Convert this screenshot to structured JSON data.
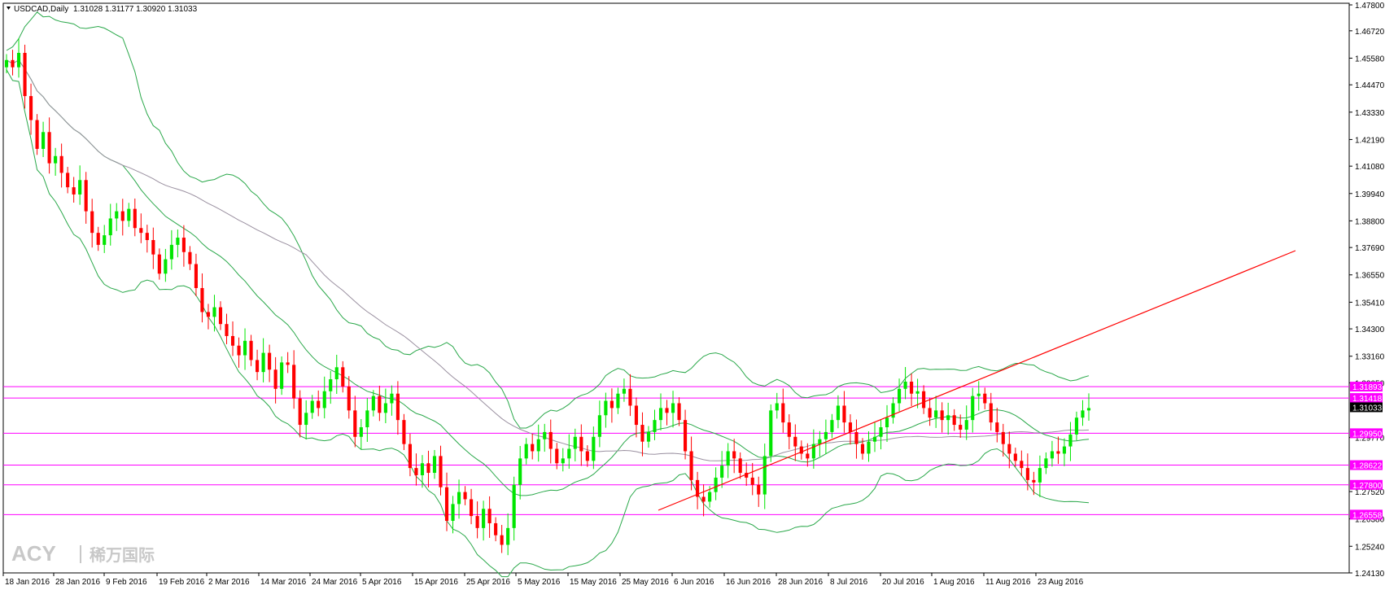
{
  "header": {
    "symbol": "USDCAD,Daily",
    "ohlc": "1.31028 1.31177 1.30920 1.31033"
  },
  "watermark": {
    "brand": "ACY",
    "chinese": "稀万国际"
  },
  "colors": {
    "bull": "#00e600",
    "bear": "#ff0000",
    "bands": "#2aa84a",
    "ma": "#9a90a0",
    "level": "#ff00ff",
    "trend": "#ff0000"
  },
  "chart_data": {
    "type": "candlestick",
    "symbol": "USDCAD",
    "timeframe": "Daily",
    "ylim": [
      1.2413,
      1.478
    ],
    "y_ticks": [
      "1.47800",
      "1.46720",
      "1.45580",
      "1.44470",
      "1.43330",
      "1.42190",
      "1.41080",
      "1.39940",
      "1.38800",
      "1.37690",
      "1.36550",
      "1.35410",
      "1.34300",
      "1.33160",
      "1.32050",
      "1.29770",
      "1.27520",
      "1.26380",
      "1.25240",
      "1.24130"
    ],
    "x_ticks": [
      "18 Jan 2016",
      "28 Jan 2016",
      "9 Feb 2016",
      "19 Feb 2016",
      "2 Mar 2016",
      "14 Mar 2016",
      "24 Mar 2016",
      "5 Apr 2016",
      "15 Apr 2016",
      "25 Apr 2016",
      "5 May 2016",
      "15 May 2016",
      "25 May 2016",
      "6 Jun 2016",
      "16 Jun 2016",
      "28 Jun 2016",
      "8 Jul 2016",
      "20 Jul 2016",
      "1 Aug 2016",
      "11 Aug 2016",
      "23 Aug 2016"
    ],
    "current_price": "1.31033",
    "levels": [
      "1.31893",
      "1.31418",
      "1.29950",
      "1.28622",
      "1.27800",
      "1.26558"
    ],
    "closes": [
      1.455,
      1.452,
      1.458,
      1.44,
      1.43,
      1.418,
      1.425,
      1.412,
      1.415,
      1.408,
      1.402,
      1.399,
      1.405,
      1.392,
      1.383,
      1.378,
      1.382,
      1.389,
      1.392,
      1.388,
      1.393,
      1.385,
      1.383,
      1.38,
      1.374,
      1.366,
      1.372,
      1.378,
      1.381,
      1.375,
      1.37,
      1.36,
      1.35,
      1.348,
      1.352,
      1.345,
      1.34,
      1.336,
      1.332,
      1.338,
      1.33,
      1.325,
      1.333,
      1.326,
      1.318,
      1.329,
      1.328,
      1.314,
      1.303,
      1.308,
      1.313,
      1.31,
      1.317,
      1.322,
      1.327,
      1.319,
      1.309,
      1.298,
      1.302,
      1.309,
      1.315,
      1.308,
      1.312,
      1.316,
      1.305,
      1.295,
      1.285,
      1.282,
      1.287,
      1.283,
      1.29,
      1.277,
      1.263,
      1.27,
      1.275,
      1.272,
      1.265,
      1.26,
      1.268,
      1.262,
      1.257,
      1.253,
      1.26,
      1.278,
      1.289,
      1.295,
      1.292,
      1.297,
      1.3,
      1.293,
      1.287,
      1.289,
      1.293,
      1.298,
      1.292,
      1.288,
      1.298,
      1.307,
      1.313,
      1.31,
      1.316,
      1.318,
      1.311,
      1.303,
      1.296,
      1.3,
      1.305,
      1.31,
      1.308,
      1.312,
      1.305,
      1.292,
      1.28,
      1.273,
      1.271,
      1.275,
      1.281,
      1.286,
      1.292,
      1.289,
      1.283,
      1.281,
      1.278,
      1.274,
      1.29,
      1.309,
      1.312,
      1.304,
      1.298,
      1.294,
      1.291,
      1.289,
      1.295,
      1.297,
      1.3,
      1.305,
      1.311,
      1.304,
      1.3,
      1.295,
      1.291,
      1.296,
      1.298,
      1.302,
      1.306,
      1.312,
      1.318,
      1.321,
      1.316,
      1.317,
      1.31,
      1.306,
      1.309,
      1.305,
      1.307,
      1.303,
      1.301,
      1.305,
      1.315,
      1.316,
      1.312,
      1.304,
      1.3,
      1.295,
      1.291,
      1.288,
      1.285,
      1.28,
      1.279,
      1.285,
      1.289,
      1.292,
      1.291,
      1.294,
      1.299,
      1.306,
      1.309,
      1.31
    ]
  },
  "trendline_label": ""
}
